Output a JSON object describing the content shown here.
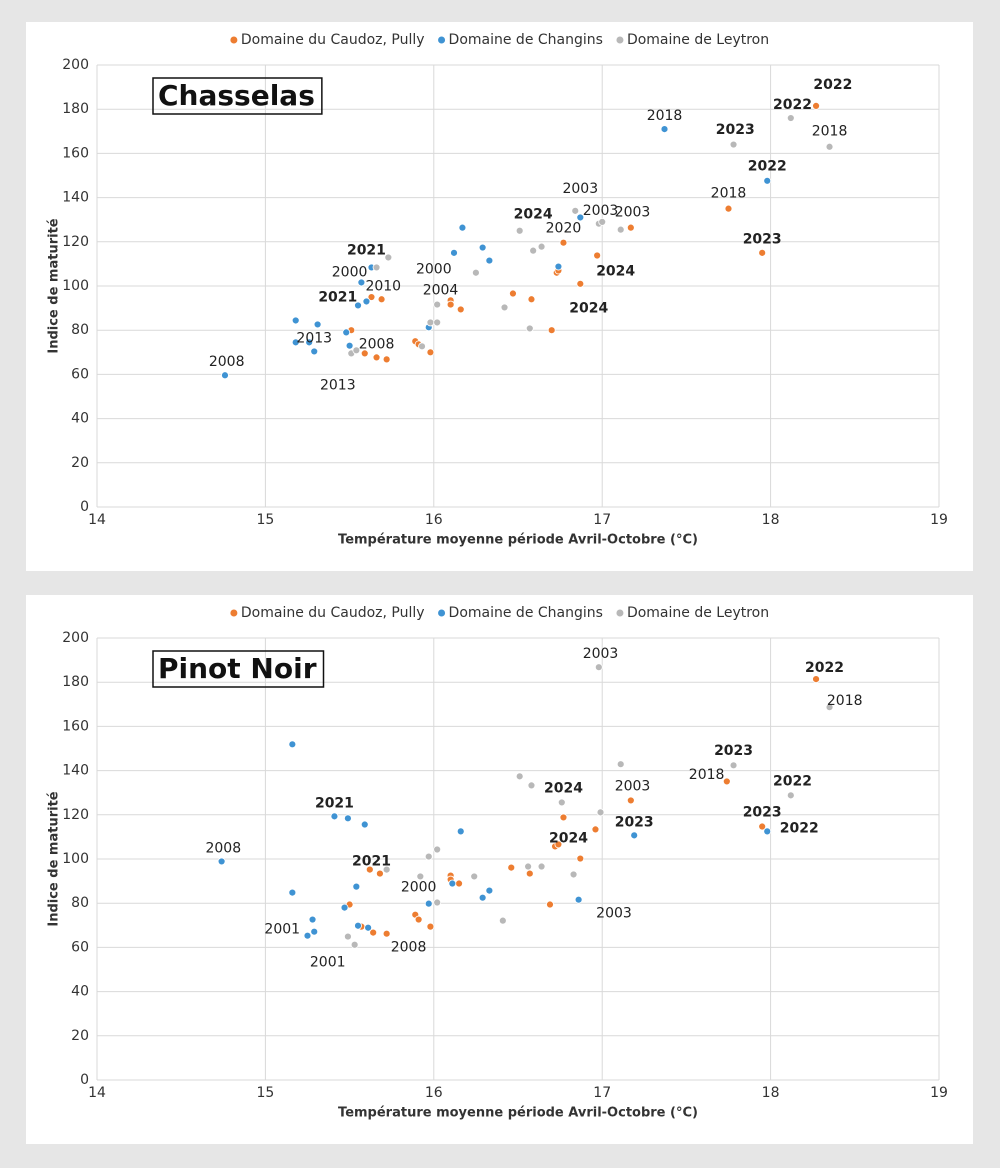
{
  "chart_data": [
    {
      "type": "scatter",
      "title": "Chasselas",
      "xlabel": "Température moyenne période Avril-Octobre (°C)",
      "ylabel": "Indice de maturité",
      "xlim": [
        14,
        19
      ],
      "ylim": [
        0,
        200
      ],
      "xticks": [
        14,
        15,
        16,
        17,
        18,
        19
      ],
      "yticks": [
        0,
        20,
        40,
        60,
        80,
        100,
        120,
        140,
        160,
        180,
        200
      ],
      "grid": true,
      "legend": "top",
      "series": [
        {
          "name": "Domaine du Caudoz, Pully",
          "color": "#ed7d31",
          "x": [
            15.51,
            15.59,
            15.66,
            15.72,
            15.63,
            15.69,
            15.89,
            15.91,
            15.98,
            16.1,
            16.1,
            16.16,
            16.47,
            16.58,
            16.7,
            16.73,
            16.74,
            16.77,
            16.87,
            16.97,
            17.17,
            17.75,
            17.95,
            18.27
          ],
          "y": [
            80,
            69.5,
            67.7,
            66.8,
            95,
            94,
            75,
            73.6,
            70,
            93.5,
            91.6,
            89.4,
            96.6,
            94,
            80,
            106,
            107,
            119.6,
            101,
            113.8,
            126.4,
            135,
            115,
            181.5
          ]
        },
        {
          "name": "Domaine de Changins",
          "color": "#3f93d3",
          "x": [
            14.76,
            15.18,
            15.18,
            15.26,
            15.29,
            15.31,
            15.48,
            15.5,
            15.55,
            15.6,
            15.57,
            15.63,
            15.97,
            16.12,
            16.17,
            16.29,
            16.33,
            16.74,
            16.87,
            17.37,
            17.98
          ],
          "y": [
            59.6,
            84.4,
            74.5,
            74.5,
            70.4,
            82.6,
            79,
            73,
            91.2,
            93,
            101.6,
            108.4,
            81.3,
            115,
            126.4,
            117.4,
            111.5,
            108.8,
            131,
            171,
            147.6
          ]
        },
        {
          "name": "Domaine de Leytron",
          "color": "#b8b8b8",
          "x": [
            15.51,
            15.54,
            15.66,
            15.73,
            15.93,
            15.98,
            16.02,
            16.02,
            16.25,
            16.42,
            16.51,
            16.57,
            16.59,
            16.64,
            16.84,
            16.98,
            17.0,
            17.11,
            17.78,
            18.12,
            18.35
          ],
          "y": [
            69.5,
            70.9,
            108.4,
            112.9,
            72.7,
            83.5,
            83.5,
            91.6,
            106,
            90.3,
            125,
            80.8,
            116,
            117.8,
            134,
            128.2,
            129,
            125.5,
            164,
            176,
            163
          ]
        }
      ],
      "annotations": [
        {
          "text": "2018",
          "x": 17.37,
          "y": 177,
          "bold": false
        },
        {
          "text": "2023",
          "x": 17.79,
          "y": 170.7,
          "bold": true
        },
        {
          "text": "2022",
          "x": 18.37,
          "y": 191,
          "bold": true
        },
        {
          "text": "2022",
          "x": 18.13,
          "y": 182,
          "bold": true
        },
        {
          "text": "2018",
          "x": 18.35,
          "y": 169.8,
          "bold": false
        },
        {
          "text": "2022",
          "x": 17.98,
          "y": 154,
          "bold": true
        },
        {
          "text": "2003",
          "x": 16.87,
          "y": 144,
          "bold": false
        },
        {
          "text": "2003",
          "x": 16.99,
          "y": 134,
          "bold": false
        },
        {
          "text": "2003",
          "x": 17.18,
          "y": 133.2,
          "bold": false
        },
        {
          "text": "2024",
          "x": 16.59,
          "y": 132.3,
          "bold": true
        },
        {
          "text": "2020",
          "x": 16.77,
          "y": 126,
          "bold": false
        },
        {
          "text": "2018",
          "x": 17.75,
          "y": 141.8,
          "bold": false
        },
        {
          "text": "2023",
          "x": 17.95,
          "y": 121,
          "bold": true
        },
        {
          "text": "2021",
          "x": 15.6,
          "y": 116,
          "bold": true
        },
        {
          "text": "2000",
          "x": 15.5,
          "y": 106,
          "bold": false
        },
        {
          "text": "2000",
          "x": 16.0,
          "y": 107.4,
          "bold": false
        },
        {
          "text": "2010",
          "x": 15.7,
          "y": 99.8,
          "bold": false
        },
        {
          "text": "2004",
          "x": 16.04,
          "y": 98,
          "bold": false
        },
        {
          "text": "2024",
          "x": 17.08,
          "y": 106.5,
          "bold": true
        },
        {
          "text": "2024",
          "x": 16.92,
          "y": 89.8,
          "bold": true
        },
        {
          "text": "2021",
          "x": 15.43,
          "y": 94.8,
          "bold": true
        },
        {
          "text": "2013",
          "x": 15.29,
          "y": 76.3,
          "bold": false
        },
        {
          "text": "2008",
          "x": 15.66,
          "y": 73.6,
          "bold": false
        },
        {
          "text": "2013",
          "x": 15.43,
          "y": 55,
          "bold": false
        },
        {
          "text": "2008",
          "x": 14.77,
          "y": 65.5,
          "bold": false
        }
      ]
    },
    {
      "type": "scatter",
      "title": "Pinot Noir",
      "xlabel": "Température moyenne période Avril-Octobre (°C)",
      "ylabel": "Indice de maturité",
      "xlim": [
        14,
        19
      ],
      "ylim": [
        0,
        200
      ],
      "xticks": [
        14,
        15,
        16,
        17,
        18,
        19
      ],
      "yticks": [
        0,
        20,
        40,
        60,
        80,
        100,
        120,
        140,
        160,
        180,
        200
      ],
      "grid": true,
      "legend": "top",
      "series": [
        {
          "name": "Domaine du Caudoz, Pully",
          "color": "#ed7d31",
          "x": [
            15.5,
            15.57,
            15.64,
            15.72,
            15.62,
            15.68,
            15.89,
            15.91,
            15.98,
            16.1,
            16.1,
            16.15,
            16.46,
            16.57,
            16.69,
            16.72,
            16.74,
            16.77,
            16.87,
            16.96,
            17.17,
            17.74,
            17.95,
            18.27
          ],
          "y": [
            79.4,
            69.4,
            66.7,
            66.2,
            95.2,
            93.4,
            74.8,
            72.6,
            69.4,
            92.5,
            90.7,
            88.9,
            96.1,
            93.4,
            79.4,
            105.7,
            106.6,
            118.8,
            100.2,
            113.4,
            126.5,
            135.1,
            114.7,
            181.4
          ]
        },
        {
          "name": "Domaine de Changins",
          "color": "#3f93d3",
          "x": [
            14.74,
            15.16,
            15.16,
            15.25,
            15.28,
            15.29,
            15.47,
            15.54,
            15.55,
            15.61,
            15.41,
            15.49,
            15.59,
            15.97,
            16.11,
            16.16,
            16.29,
            16.33,
            16.86,
            17.19,
            17.98
          ],
          "y": [
            98.9,
            84.8,
            151.9,
            65.3,
            72.6,
            67.1,
            78,
            87.5,
            69.8,
            68.9,
            119.3,
            118.4,
            115.6,
            79.8,
            88.9,
            112.5,
            82.5,
            85.7,
            81.6,
            110.7,
            112.5
          ]
        },
        {
          "name": "Domaine de Leytron",
          "color": "#b8b8b8",
          "x": [
            15.49,
            15.53,
            15.72,
            15.92,
            15.97,
            16.02,
            16.02,
            16.24,
            16.41,
            16.51,
            16.56,
            16.58,
            16.64,
            16.76,
            16.83,
            16.98,
            16.99,
            17.11,
            17.78,
            18.12,
            18.35
          ],
          "y": [
            64.9,
            61.2,
            95.2,
            92.1,
            101.1,
            80.3,
            104.3,
            92.1,
            72.1,
            137.4,
            96.6,
            133.3,
            96.6,
            125.6,
            93,
            186.8,
            121.1,
            142.9,
            142.4,
            128.8,
            168.7
          ]
        }
      ],
      "annotations": [
        {
          "text": "2003",
          "x": 16.99,
          "y": 192.7,
          "bold": false
        },
        {
          "text": "2022",
          "x": 18.32,
          "y": 186.4,
          "bold": true
        },
        {
          "text": "2018",
          "x": 18.44,
          "y": 171.4,
          "bold": false
        },
        {
          "text": "2023",
          "x": 17.78,
          "y": 148.8,
          "bold": true
        },
        {
          "text": "2018",
          "x": 17.62,
          "y": 137.9,
          "bold": false
        },
        {
          "text": "2022",
          "x": 18.13,
          "y": 135.1,
          "bold": true
        },
        {
          "text": "2003",
          "x": 17.18,
          "y": 132.9,
          "bold": false
        },
        {
          "text": "2024",
          "x": 16.77,
          "y": 132,
          "bold": true
        },
        {
          "text": "2023",
          "x": 17.19,
          "y": 116.6,
          "bold": true
        },
        {
          "text": "2023",
          "x": 17.95,
          "y": 121.1,
          "bold": true
        },
        {
          "text": "2022",
          "x": 18.17,
          "y": 113.8,
          "bold": true
        },
        {
          "text": "2024",
          "x": 16.8,
          "y": 109.3,
          "bold": true
        },
        {
          "text": "2021",
          "x": 15.41,
          "y": 125.2,
          "bold": true
        },
        {
          "text": "2021",
          "x": 15.63,
          "y": 98.9,
          "bold": true
        },
        {
          "text": "2008",
          "x": 14.75,
          "y": 104.8,
          "bold": false
        },
        {
          "text": "2000",
          "x": 15.91,
          "y": 87.1,
          "bold": false
        },
        {
          "text": "2003",
          "x": 17.07,
          "y": 75.3,
          "bold": false
        },
        {
          "text": "2001",
          "x": 15.1,
          "y": 68,
          "bold": false
        },
        {
          "text": "2008",
          "x": 15.85,
          "y": 59.9,
          "bold": false
        },
        {
          "text": "2001",
          "x": 15.37,
          "y": 53.1,
          "bold": false
        }
      ]
    }
  ]
}
